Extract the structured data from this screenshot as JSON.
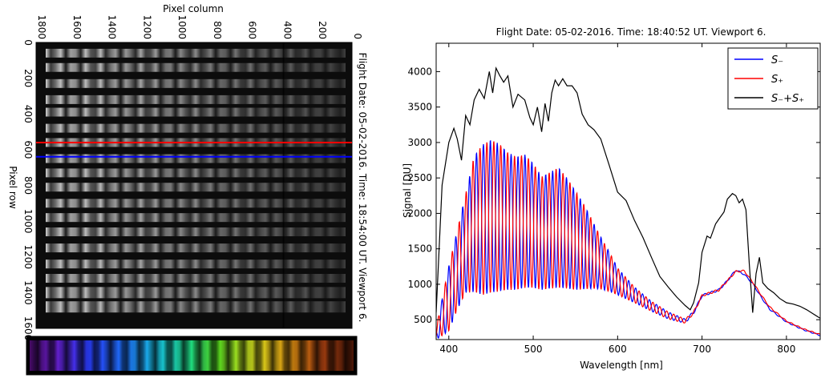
{
  "chart_data": [
    {
      "type": "heatmap",
      "title": "Flight Date: 05-02-2016. Time: 18:54:00 UT. Viewport 6.",
      "xlabel": "Pixel column",
      "ylabel": "Pixel row",
      "xlim": [
        1800,
        0
      ],
      "ylim": [
        0,
        1600
      ],
      "xticks": [
        "1800",
        "1600",
        "1400",
        "1200",
        "1000",
        "800",
        "600",
        "400",
        "200",
        "0"
      ],
      "yticks": [
        "0",
        "200",
        "400",
        "600",
        "800",
        "1000",
        "1200",
        "1400",
        "1600"
      ],
      "bands_row_centers": [
        60,
        140,
        230,
        320,
        390,
        480,
        560,
        650,
        730,
        810,
        900,
        980,
        1060,
        1150,
        1240,
        1320,
        1400,
        1480
      ],
      "marked_rows": [
        {
          "row": 560,
          "color": "#ff0000"
        },
        {
          "row": 640,
          "color": "#0000ff"
        }
      ],
      "colormap": "gray",
      "color_strip": "rainbow fringes, violet to red"
    },
    {
      "type": "line",
      "title": "Flight Date: 05-02-2016. Time: 18:40:52 UT. Viewport 6.",
      "xlabel": "Wavelength [nm]",
      "ylabel": "Signal [DU]",
      "xlim": [
        385,
        840
      ],
      "ylim": [
        220,
        4400
      ],
      "xticks": [
        400,
        500,
        600,
        700,
        800
      ],
      "yticks": [
        500,
        1000,
        1500,
        2000,
        2500,
        3000,
        3500,
        4000
      ],
      "legend_position": "top-right",
      "series": [
        {
          "name": "S_-",
          "legend_label": "S₋",
          "color": "#0000ff",
          "x": [
            385,
            400,
            410,
            420,
            430,
            440,
            450,
            460,
            470,
            480,
            490,
            500,
            510,
            520,
            530,
            540,
            550,
            560,
            570,
            580,
            590,
            600,
            620,
            640,
            660,
            680,
            690,
            700,
            710,
            720,
            730,
            740,
            750,
            760,
            770,
            780,
            800,
            820,
            840
          ],
          "y": [
            300,
            800,
            1200,
            1580,
            1850,
            1910,
            1960,
            1940,
            1890,
            1860,
            1890,
            1830,
            1720,
            1760,
            1800,
            1720,
            1620,
            1530,
            1420,
            1300,
            1180,
            1040,
            850,
            690,
            560,
            480,
            600,
            840,
            880,
            920,
            1050,
            1200,
            1140,
            1010,
            820,
            650,
            470,
            360,
            280
          ],
          "osc_amp": [
            80,
            460,
            560,
            700,
            960,
            1060,
            1080,
            1040,
            970,
            940,
            940,
            880,
            800,
            820,
            850,
            780,
            700,
            600,
            480,
            370,
            280,
            190,
            110,
            70,
            50,
            30,
            20,
            15,
            15,
            15,
            12,
            12,
            10,
            10,
            10,
            10,
            8,
            8,
            8
          ],
          "period_nm": 8.2,
          "phase": 0
        },
        {
          "name": "S_+",
          "legend_label": "S₊",
          "color": "#ff0000",
          "x": [
            385,
            400,
            410,
            420,
            430,
            440,
            450,
            460,
            470,
            480,
            490,
            500,
            510,
            520,
            530,
            540,
            550,
            560,
            570,
            580,
            590,
            600,
            620,
            640,
            660,
            680,
            690,
            700,
            710,
            720,
            730,
            740,
            750,
            760,
            770,
            780,
            800,
            820,
            840
          ],
          "y": [
            300,
            800,
            1200,
            1580,
            1850,
            1910,
            1960,
            1940,
            1890,
            1860,
            1890,
            1830,
            1720,
            1760,
            1800,
            1720,
            1620,
            1530,
            1420,
            1300,
            1180,
            1040,
            850,
            690,
            560,
            480,
            600,
            840,
            880,
            920,
            1050,
            1180,
            1190,
            1030,
            850,
            680,
            480,
            370,
            290
          ],
          "osc_amp": [
            80,
            460,
            560,
            700,
            960,
            1060,
            1080,
            1040,
            970,
            940,
            940,
            880,
            800,
            820,
            850,
            780,
            700,
            600,
            480,
            370,
            280,
            190,
            110,
            70,
            50,
            30,
            20,
            15,
            15,
            15,
            12,
            12,
            10,
            10,
            10,
            10,
            8,
            8,
            8
          ],
          "period_nm": 8.2,
          "phase": 3.14159
        },
        {
          "name": "S_- + S_+",
          "legend_label": "S₋+S₊",
          "color": "#000000",
          "x": [
            385,
            392,
            400,
            406,
            410,
            415,
            420,
            425,
            430,
            436,
            442,
            448,
            452,
            456,
            460,
            465,
            470,
            476,
            482,
            490,
            496,
            500,
            505,
            510,
            514,
            518,
            522,
            526,
            530,
            535,
            540,
            546,
            552,
            558,
            565,
            572,
            580,
            590,
            600,
            610,
            620,
            630,
            640,
            650,
            660,
            670,
            680,
            686,
            690,
            696,
            700,
            706,
            710,
            716,
            720,
            726,
            730,
            736,
            740,
            744,
            748,
            752,
            756,
            760,
            764,
            768,
            772,
            778,
            785,
            792,
            800,
            808,
            816,
            824,
            832,
            840
          ],
          "y": [
            600,
            2400,
            3000,
            3200,
            3050,
            2750,
            3380,
            3250,
            3600,
            3750,
            3620,
            4000,
            3700,
            4050,
            3950,
            3850,
            3940,
            3500,
            3680,
            3600,
            3350,
            3250,
            3500,
            3150,
            3550,
            3300,
            3700,
            3880,
            3800,
            3900,
            3800,
            3800,
            3700,
            3400,
            3250,
            3180,
            3050,
            2680,
            2300,
            2180,
            1900,
            1660,
            1380,
            1110,
            960,
            820,
            700,
            640,
            740,
            1020,
            1450,
            1680,
            1650,
            1850,
            1920,
            2020,
            2200,
            2280,
            2250,
            2150,
            2200,
            2050,
            1280,
            600,
            1150,
            1380,
            1020,
            940,
            880,
            800,
            740,
            720,
            690,
            640,
            580,
            520
          ],
          "osc_amp": null,
          "period_nm": null,
          "phase": 0
        }
      ]
    }
  ]
}
